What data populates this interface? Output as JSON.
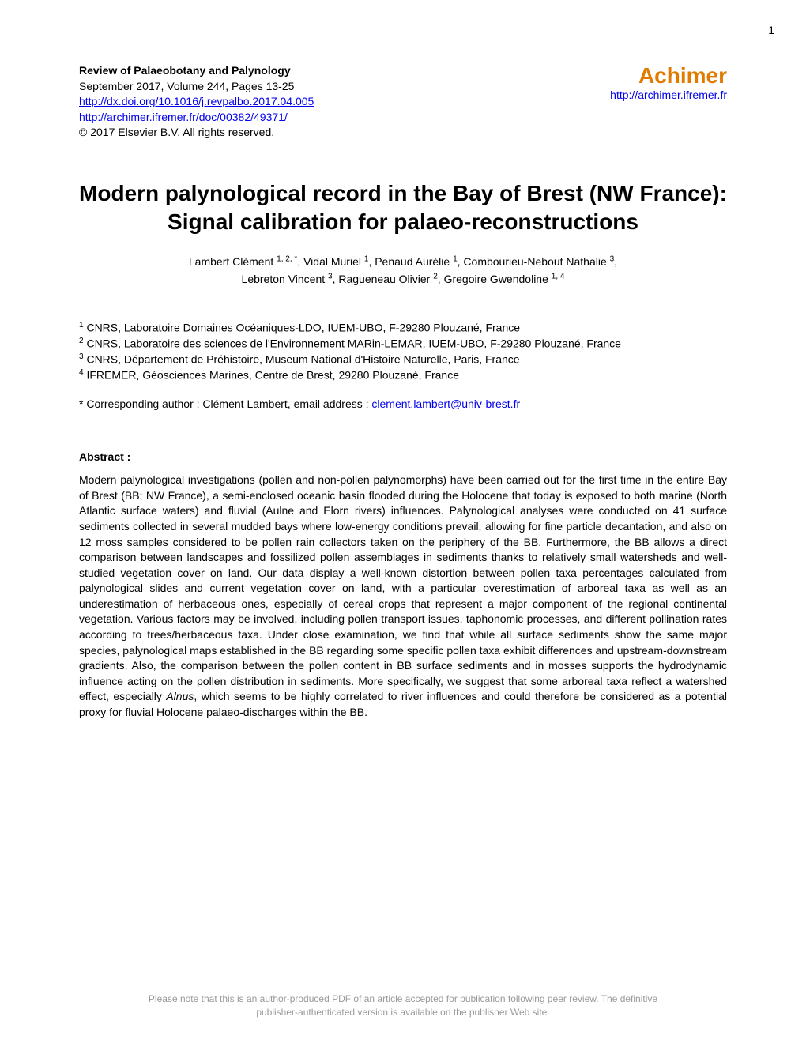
{
  "page_number": "1",
  "journal": {
    "title": "Review of Palaeobotany and Palynology",
    "issue": "September 2017, Volume 244, Pages 13-25",
    "doi_url": "http://dx.doi.org/10.1016/j.revpalbo.2017.04.005",
    "archimer_url": "http://archimer.ifremer.fr/doc/00382/49371/",
    "copyright": "© 2017 Elsevier B.V. All rights reserved."
  },
  "achimer": {
    "title": "Achimer",
    "url": "http://archimer.ifremer.fr"
  },
  "title": "Modern palynological record in the Bay of Brest (NW France): Signal calibration for palaeo-reconstructions",
  "authors_line1": "Lambert Clément ¹·²·*, Vidal Muriel ¹, Penaud Aurélie ¹, Combourieu-Nebout Nathalie ³,",
  "authors_line2": "Lebreton Vincent ³, Ragueneau Olivier ², Gregoire Gwendoline ¹·⁴",
  "author_parts": {
    "a1_name": "Lambert Clément ",
    "a1_sup": "1, 2, *",
    "sep1": ", ",
    "a2_name": "Vidal Muriel ",
    "a2_sup": "1",
    "sep2": ", ",
    "a3_name": "Penaud Aurélie ",
    "a3_sup": "1",
    "sep3": ", ",
    "a4_name": "Combourieu-Nebout Nathalie ",
    "a4_sup": "3",
    "sep4": ",",
    "a5_name": "Lebreton Vincent ",
    "a5_sup": "3",
    "sep5": ", ",
    "a6_name": "Ragueneau Olivier ",
    "a6_sup": "2",
    "sep6": ", ",
    "a7_name": "Gregoire Gwendoline ",
    "a7_sup": "1, 4"
  },
  "affiliations": {
    "a1_sup": "1",
    "a1": " CNRS, Laboratoire Domaines Océaniques-LDO, IUEM-UBO, F-29280 Plouzané, France",
    "a2_sup": "2",
    "a2": " CNRS, Laboratoire des sciences de l'Environnement MARin-LEMAR, IUEM-UBO, F-29280 Plouzané, France",
    "a3_sup": "3",
    "a3": " CNRS, Département de Préhistoire, Museum National d'Histoire Naturelle, Paris, France",
    "a4_sup": "4",
    "a4": " IFREMER, Géosciences Marines, Centre de Brest, 29280 Plouzané, France"
  },
  "corresponding": {
    "prefix": "* Corresponding author : Clément Lambert, email address : ",
    "email": "clement.lambert@univ-brest.fr"
  },
  "abstract": {
    "heading": "Abstract :",
    "text_part1": "Modern palynological investigations (pollen and non-pollen palynomorphs) have been carried out for the first time in the entire Bay of Brest (BB; NW France), a semi-enclosed oceanic basin flooded during the Holocene that today is exposed to both marine (North Atlantic surface waters) and fluvial (Aulne and Elorn rivers) influences. Palynological analyses were conducted on 41 surface sediments collected in several mudded bays where low-energy conditions prevail, allowing for fine particle decantation, and also on 12 moss samples considered to be pollen rain collectors taken on the periphery of the BB. Furthermore, the BB allows a direct comparison between landscapes and fossilized pollen assemblages in sediments thanks to relatively small watersheds and well-studied vegetation cover on land. Our data display a well-known distortion between pollen taxa percentages calculated from palynological slides and current vegetation cover on land, with a particular overestimation of arboreal taxa as well as an underestimation of herbaceous ones, especially of cereal crops that represent a major component of the regional continental vegetation. Various factors may be involved, including pollen transport issues, taphonomic processes, and different pollination rates according to trees/herbaceous taxa. Under close examination, we find that while all surface sediments show the same major species, palynological maps established in the BB regarding some specific pollen taxa exhibit differences and upstream-downstream gradients. Also, the comparison between the pollen content in BB surface sediments and in mosses supports the hydrodynamic influence acting on the pollen distribution in sediments. More specifically, we suggest that some arboreal taxa reflect a watershed effect, especially ",
    "text_italic": "Alnus",
    "text_part2": ", which seems to be highly correlated to river influences and could therefore be considered as a potential proxy for fluvial Holocene palaeo-discharges within the BB."
  },
  "footer": {
    "line1": "Please note that this is an author-produced PDF of an article accepted for publication following peer review. The definitive",
    "line2": "publisher-authenticated version is available on the publisher Web site."
  }
}
